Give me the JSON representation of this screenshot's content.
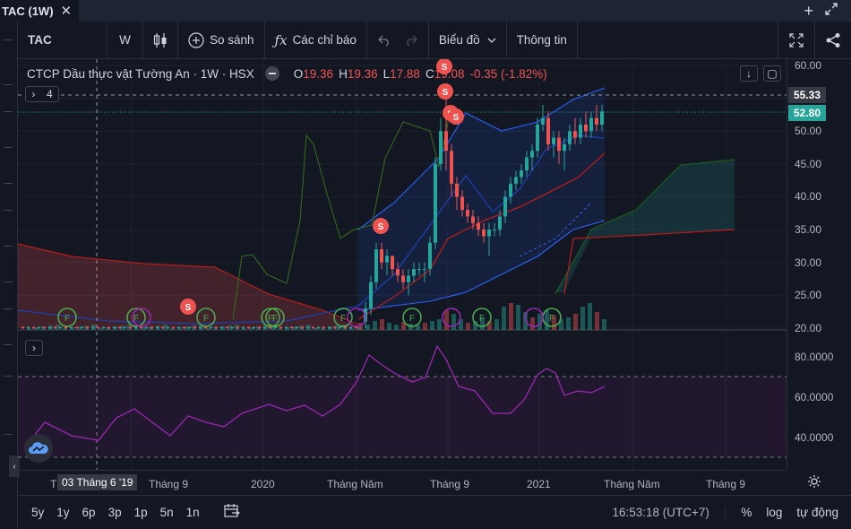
{
  "tab": {
    "title": "TAC (1W)"
  },
  "toolbar": {
    "symbol": "TAC",
    "interval": "W",
    "compare": "So sánh",
    "indicators": "Các chỉ báo",
    "chart_layout": "Biểu đồ",
    "info": "Thông tin"
  },
  "legend": {
    "name": "CTCP Dầu thực vật Tường An · 1W · HSX",
    "o_label": "O",
    "o": "19.36",
    "h_label": "H",
    "h": "19.36",
    "l_label": "L",
    "l": "17.88",
    "c_label": "C",
    "c": "19.08",
    "change": "-0.35 (-1.82%)",
    "indicator_count": "4"
  },
  "price_axis": {
    "ticks": [
      "60.00",
      "55.00",
      "50.00",
      "45.00",
      "40.00",
      "35.00",
      "30.00",
      "25.00",
      "20.00"
    ],
    "tag_high": "55.33",
    "tag_last": "52.80"
  },
  "osc_axis": {
    "ticks": [
      "80.0000",
      "60.0000",
      "40.0000"
    ]
  },
  "time_axis": {
    "crosshair": "03 Tháng 6 '19",
    "labels": [
      "Th",
      "Tháng 9",
      "2020",
      "Tháng Năm",
      "Tháng 9",
      "2021",
      "Tháng Năm",
      "Tháng 9"
    ]
  },
  "bottombar": {
    "ranges": [
      "5y",
      "1y",
      "6p",
      "3p",
      "1p",
      "5n",
      "1n"
    ],
    "clock": "16:53:18 (UTC+7)",
    "percent": "%",
    "log": "log",
    "auto": "tự động"
  },
  "markers": {
    "sell": "S",
    "fundamental": "F"
  },
  "colors": {
    "background": "#131722",
    "up": "#26a69a",
    "down": "#ef5350",
    "last_price": "#26a69a",
    "high_tag": "#363a45",
    "oscillator": "#9c27b0"
  },
  "icons": {
    "candles": "candlestick-icon",
    "add": "plus-circle-icon",
    "fx": "function-icon",
    "undo": "undo-icon",
    "redo": "redo-icon",
    "fullscreen": "fullscreen-icon",
    "share": "share-icon",
    "settings": "gear-icon"
  }
}
